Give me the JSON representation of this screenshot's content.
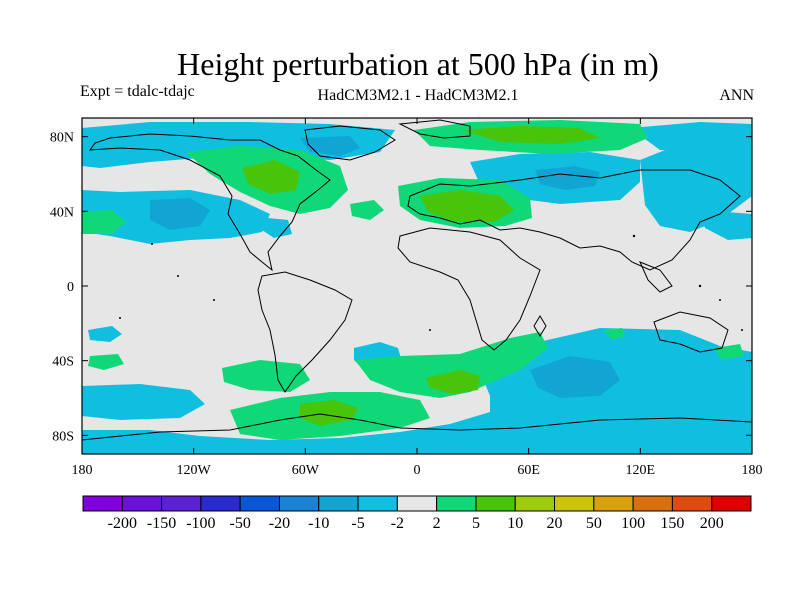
{
  "title": "Height perturbation at 500 hPa (in m)",
  "expt_label": "Expt = tdalc-tdajc",
  "model_label": "HadCM3M2.1 - HadCM3M2.1",
  "season_label": "ANN",
  "lat_ticks": [
    {
      "value": 80,
      "label": "80N"
    },
    {
      "value": 40,
      "label": "40N"
    },
    {
      "value": 0,
      "label": "0"
    },
    {
      "value": -40,
      "label": "40S"
    },
    {
      "value": -80,
      "label": "80S"
    }
  ],
  "lon_ticks": [
    {
      "value": -180,
      "label": "180"
    },
    {
      "value": -120,
      "label": "120W"
    },
    {
      "value": -60,
      "label": "60W"
    },
    {
      "value": 0,
      "label": "0"
    },
    {
      "value": 60,
      "label": "60E"
    },
    {
      "value": 120,
      "label": "120E"
    },
    {
      "value": 180,
      "label": "180"
    }
  ],
  "colorbar": {
    "colors": [
      "#7f00dc",
      "#6a12d9",
      "#5a22d4",
      "#2a2ad0",
      "#0a56d8",
      "#1a83d6",
      "#11a5d4",
      "#10bfe0",
      "#e6e6e6",
      "#10d878",
      "#48c40a",
      "#9ccc0a",
      "#ccc40a",
      "#d8a00a",
      "#d87010",
      "#de4a10",
      "#dc0000"
    ],
    "labels": [
      "-200",
      "-150",
      "-100",
      "-50",
      "-20",
      "-10",
      "-5",
      "-2",
      "2",
      "5",
      "10",
      "20",
      "50",
      "100",
      "150",
      "200"
    ]
  },
  "field_colors": {
    "neutral": "#e6e6e6",
    "neg_light": "#10bfe0",
    "neg_mid": "#11a5d4",
    "pos_light": "#10d878",
    "pos_mid": "#48c40a"
  }
}
